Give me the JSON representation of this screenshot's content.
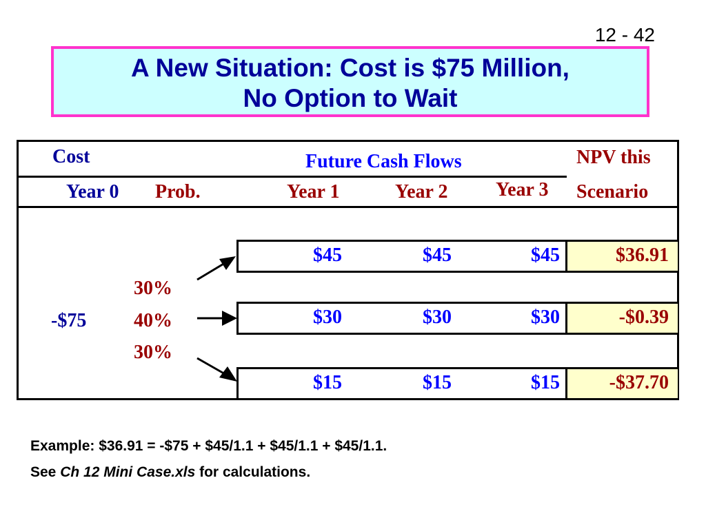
{
  "slide": {
    "number": "12 - 42",
    "title_line1": "A New Situation: Cost is $75 Million,",
    "title_line2": "No Option to Wait"
  },
  "table": {
    "headers": {
      "cost": "Cost",
      "future_cash_flows": "Future Cash Flows",
      "npv_this": "NPV this",
      "year0": "Year 0",
      "prob": "Prob.",
      "year1": "Year 1",
      "year2": "Year 2",
      "year3": "Year 3",
      "scenario": "Scenario"
    },
    "cost_value": "-$75",
    "probabilities": [
      "30%",
      "40%",
      "30%"
    ],
    "scenarios": [
      {
        "year1": "$45",
        "year2": "$45",
        "year3": "$45",
        "npv": "$36.91"
      },
      {
        "year1": "$30",
        "year2": "$30",
        "year3": "$30",
        "npv": "-$0.39"
      },
      {
        "year1": "$15",
        "year2": "$15",
        "year3": "$15",
        "npv": "-$37.70"
      }
    ]
  },
  "footnote": {
    "line1": "Example: $36.91 = -$75 + $45/1.1 + $45/1.1 + $45/1.1.",
    "line2_prefix": "See ",
    "line2_italic": "Ch 12 Mini Case.xls",
    "line2_suffix": " for calculations."
  },
  "colors": {
    "title_bg": "#ccffff",
    "title_border": "#ff33cc",
    "title_text": "#000099",
    "npv_highlight": "#ffffcc",
    "cash_flow_text": "#0000ff",
    "prob_text": "#990000"
  }
}
